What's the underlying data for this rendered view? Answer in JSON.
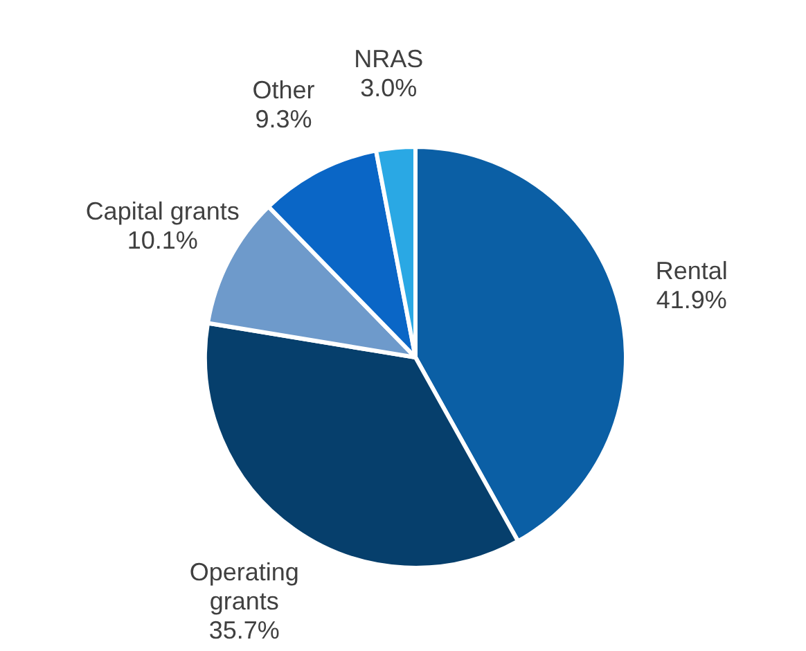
{
  "chart_data": {
    "type": "pie",
    "categories": [
      "Rental",
      "Operating grants",
      "Capital grants",
      "Other",
      "NRAS"
    ],
    "values": [
      41.9,
      35.7,
      10.1,
      9.3,
      3.0
    ],
    "colors": [
      "#0b5fa5",
      "#063f6c",
      "#6e9acb",
      "#0a66c6",
      "#2aa8e4"
    ],
    "value_labels": [
      "41.9%",
      "35.7%",
      "10.1%",
      "9.3%",
      "3.0%"
    ]
  }
}
